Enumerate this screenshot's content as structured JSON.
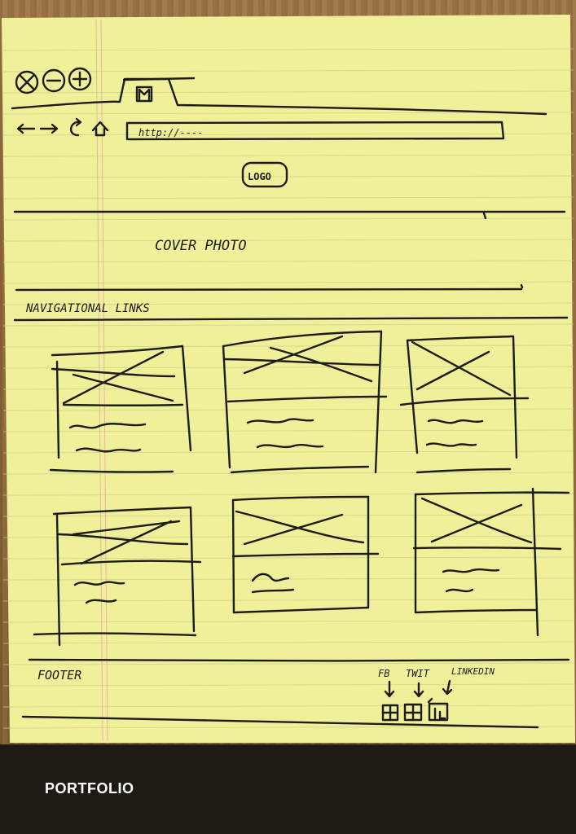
{
  "sketch": {
    "address_bar": "http://----",
    "logo": "LOGO",
    "cover_photo": "COVER PHOTO",
    "nav_links": "NAVIGATIONAL LINKS",
    "footer": "FOOTER",
    "social_labels": [
      "FB",
      "TWIT",
      "LINKEDIN"
    ]
  },
  "caption": "PORTFOLIO",
  "colors": {
    "paper": "#f2f19a",
    "ink": "#1c1c16",
    "caption_bar": "#201a15",
    "caption_text": "#ffffff"
  }
}
